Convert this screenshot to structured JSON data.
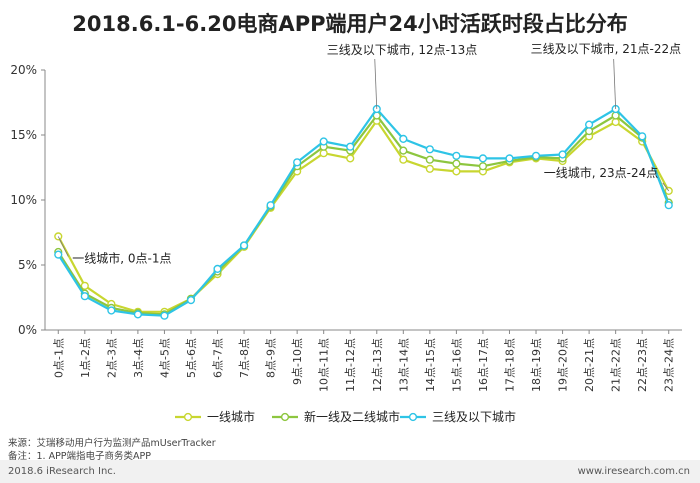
{
  "title": "2018.6.1-6.20电商APP端用户24小时活跃时段占比分布",
  "chart_data": {
    "type": "line",
    "categories": [
      "0点-1点",
      "1点-2点",
      "2点-3点",
      "3点-4点",
      "4点-5点",
      "5点-6点",
      "6点-7点",
      "7点-8点",
      "8点-9点",
      "9点-10点",
      "10点-11点",
      "11点-12点",
      "12点-13点",
      "13点-14点",
      "14点-15点",
      "15点-16点",
      "16点-17点",
      "17点-18点",
      "18点-19点",
      "19点-20点",
      "20点-21点",
      "21点-22点",
      "22点-23点",
      "23点-24点"
    ],
    "y_ticks": [
      "0%",
      "5%",
      "10%",
      "15%",
      "20%"
    ],
    "ylim": [
      0,
      20
    ],
    "grid": false,
    "legend_position": "bottom",
    "series": [
      {
        "name": "一线城市",
        "color": "#c8d630",
        "values": [
          7.2,
          3.4,
          2.0,
          1.4,
          1.4,
          2.4,
          4.3,
          6.4,
          9.4,
          12.2,
          13.6,
          13.2,
          16.1,
          13.1,
          12.4,
          12.2,
          12.2,
          12.9,
          13.2,
          13.0,
          14.9,
          16.0,
          14.5,
          10.7
        ]
      },
      {
        "name": "新一线及二线城市",
        "color": "#8dc63f",
        "values": [
          6.0,
          2.8,
          1.7,
          1.3,
          1.2,
          2.4,
          4.5,
          6.5,
          9.5,
          12.6,
          14.1,
          13.8,
          16.5,
          13.8,
          13.1,
          12.8,
          12.6,
          13.0,
          13.3,
          13.2,
          15.3,
          16.5,
          14.8,
          9.8
        ]
      },
      {
        "name": "三线及以下城市",
        "color": "#2ec4e6",
        "values": [
          5.8,
          2.6,
          1.5,
          1.2,
          1.1,
          2.3,
          4.7,
          6.5,
          9.6,
          12.9,
          14.5,
          14.1,
          17.0,
          14.7,
          13.9,
          13.4,
          13.2,
          13.2,
          13.4,
          13.5,
          15.8,
          17.0,
          14.9,
          9.6
        ]
      }
    ],
    "annotations": [
      {
        "text": "一线城市, 0点-1点",
        "series": 0,
        "index": 0
      },
      {
        "text": "三线及以下城市, 12点-13点",
        "series": 2,
        "index": 12
      },
      {
        "text": "三线及以下城市, 21点-22点",
        "series": 2,
        "index": 21
      },
      {
        "text": "一线城市, 23点-24点",
        "series": 0,
        "index": 23
      }
    ]
  },
  "footer": {
    "source": "来源：艾瑞移动用户行为监测产品mUserTracker",
    "note": "备注：1. APP端指电子商务类APP",
    "copyright": "2018.6 iResearch Inc.",
    "website": "www.iresearch.com.cn"
  }
}
